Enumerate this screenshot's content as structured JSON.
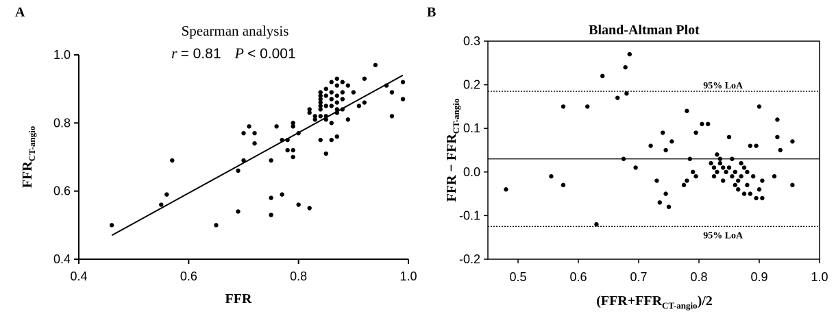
{
  "chart_data": [
    {
      "panel": "A",
      "type": "scatter",
      "title": "Spearman analysis",
      "stats": {
        "r_symbol": "r",
        "r_text": "= 0.81",
        "p_symbol": "P",
        "p_text": "< 0.001"
      },
      "xlabel": "FFR",
      "ylabel_main": "FFR",
      "ylabel_sub": "CT-angio",
      "xlim": [
        0.4,
        1.0
      ],
      "ylim": [
        0.4,
        1.0
      ],
      "xticks": [
        "0.4",
        "0.6",
        "0.8",
        "1.0"
      ],
      "yticks": [
        "0.4",
        "0.6",
        "0.8",
        "1.0"
      ],
      "regression": {
        "x": [
          0.46,
          0.99
        ],
        "y": [
          0.47,
          0.94
        ]
      },
      "points": [
        [
          0.46,
          0.5
        ],
        [
          0.55,
          0.56
        ],
        [
          0.56,
          0.59
        ],
        [
          0.57,
          0.69
        ],
        [
          0.65,
          0.5
        ],
        [
          0.69,
          0.54
        ],
        [
          0.69,
          0.66
        ],
        [
          0.7,
          0.69
        ],
        [
          0.7,
          0.77
        ],
        [
          0.71,
          0.79
        ],
        [
          0.72,
          0.77
        ],
        [
          0.72,
          0.74
        ],
        [
          0.75,
          0.69
        ],
        [
          0.75,
          0.58
        ],
        [
          0.75,
          0.53
        ],
        [
          0.76,
          0.79
        ],
        [
          0.77,
          0.59
        ],
        [
          0.77,
          0.75
        ],
        [
          0.78,
          0.72
        ],
        [
          0.78,
          0.75
        ],
        [
          0.79,
          0.8
        ],
        [
          0.79,
          0.79
        ],
        [
          0.79,
          0.72
        ],
        [
          0.79,
          0.7
        ],
        [
          0.8,
          0.56
        ],
        [
          0.8,
          0.77
        ],
        [
          0.82,
          0.55
        ],
        [
          0.82,
          0.84
        ],
        [
          0.82,
          0.83
        ],
        [
          0.83,
          0.82
        ],
        [
          0.83,
          0.81
        ],
        [
          0.84,
          0.89
        ],
        [
          0.84,
          0.88
        ],
        [
          0.84,
          0.87
        ],
        [
          0.84,
          0.86
        ],
        [
          0.84,
          0.85
        ],
        [
          0.84,
          0.84
        ],
        [
          0.84,
          0.82
        ],
        [
          0.84,
          0.75
        ],
        [
          0.85,
          0.9
        ],
        [
          0.85,
          0.88
        ],
        [
          0.85,
          0.85
        ],
        [
          0.85,
          0.82
        ],
        [
          0.85,
          0.81
        ],
        [
          0.85,
          0.71
        ],
        [
          0.86,
          0.92
        ],
        [
          0.86,
          0.89
        ],
        [
          0.86,
          0.87
        ],
        [
          0.86,
          0.85
        ],
        [
          0.86,
          0.8
        ],
        [
          0.86,
          0.75
        ],
        [
          0.87,
          0.93
        ],
        [
          0.87,
          0.91
        ],
        [
          0.87,
          0.88
        ],
        [
          0.87,
          0.86
        ],
        [
          0.87,
          0.84
        ],
        [
          0.87,
          0.83
        ],
        [
          0.87,
          0.76
        ],
        [
          0.88,
          0.92
        ],
        [
          0.88,
          0.89
        ],
        [
          0.88,
          0.87
        ],
        [
          0.88,
          0.84
        ],
        [
          0.89,
          0.91
        ],
        [
          0.89,
          0.81
        ],
        [
          0.9,
          0.89
        ],
        [
          0.91,
          0.85
        ],
        [
          0.92,
          0.86
        ],
        [
          0.92,
          0.93
        ],
        [
          0.94,
          0.97
        ],
        [
          0.96,
          0.91
        ],
        [
          0.97,
          0.89
        ],
        [
          0.97,
          0.82
        ],
        [
          0.99,
          0.92
        ],
        [
          0.99,
          0.87
        ]
      ]
    },
    {
      "panel": "B",
      "type": "scatter",
      "title": "Bland-Altman Plot",
      "xlabel_pre": "(FFR+FFR",
      "xlabel_sub": "CT-angio",
      "xlabel_post": ")/2",
      "ylabel_pre": "FFR − FFR",
      "ylabel_sub": "CT-angio",
      "xlim": [
        0.45,
        1.0
      ],
      "ylim": [
        -0.2,
        0.3
      ],
      "xticks": [
        "0.5",
        "0.6",
        "0.7",
        "0.8",
        "0.9",
        "1.0"
      ],
      "yticks": [
        "-0.2",
        "-0.1",
        "0.0",
        "0.1",
        "0.2",
        "0.3"
      ],
      "mean_line": 0.03,
      "loa_upper": 0.185,
      "loa_lower": -0.125,
      "loa_upper_label": "95% LoA",
      "loa_lower_label": "95% LoA",
      "points": [
        [
          0.48,
          -0.04
        ],
        [
          0.555,
          -0.01
        ],
        [
          0.575,
          -0.03
        ],
        [
          0.575,
          0.15
        ],
        [
          0.615,
          0.15
        ],
        [
          0.63,
          -0.12
        ],
        [
          0.64,
          0.22
        ],
        [
          0.665,
          0.17
        ],
        [
          0.675,
          0.03
        ],
        [
          0.678,
          0.24
        ],
        [
          0.68,
          0.18
        ],
        [
          0.685,
          0.27
        ],
        [
          0.695,
          0.01
        ],
        [
          0.72,
          0.06
        ],
        [
          0.73,
          -0.02
        ],
        [
          0.735,
          -0.07
        ],
        [
          0.74,
          0.09
        ],
        [
          0.745,
          -0.05
        ],
        [
          0.745,
          0.05
        ],
        [
          0.75,
          -0.08
        ],
        [
          0.755,
          0.07
        ],
        [
          0.775,
          -0.03
        ],
        [
          0.78,
          0.14
        ],
        [
          0.78,
          -0.02
        ],
        [
          0.785,
          0.03
        ],
        [
          0.79,
          0.0
        ],
        [
          0.795,
          -0.01
        ],
        [
          0.795,
          0.09
        ],
        [
          0.805,
          0.11
        ],
        [
          0.815,
          0.11
        ],
        [
          0.82,
          0.02
        ],
        [
          0.825,
          0.01
        ],
        [
          0.825,
          -0.01
        ],
        [
          0.83,
          0.04
        ],
        [
          0.83,
          0.0
        ],
        [
          0.835,
          0.03
        ],
        [
          0.835,
          0.02
        ],
        [
          0.84,
          0.01
        ],
        [
          0.84,
          -0.02
        ],
        [
          0.845,
          0.0
        ],
        [
          0.85,
          0.08
        ],
        [
          0.85,
          0.01
        ],
        [
          0.855,
          0.03
        ],
        [
          0.855,
          -0.01
        ],
        [
          0.86,
          0.0
        ],
        [
          0.86,
          -0.03
        ],
        [
          0.865,
          -0.02
        ],
        [
          0.865,
          -0.04
        ],
        [
          0.87,
          0.02
        ],
        [
          0.87,
          -0.01
        ],
        [
          0.875,
          -0.05
        ],
        [
          0.875,
          0.01
        ],
        [
          0.88,
          0.0
        ],
        [
          0.88,
          -0.03
        ],
        [
          0.885,
          -0.05
        ],
        [
          0.885,
          0.06
        ],
        [
          0.89,
          -0.01
        ],
        [
          0.895,
          -0.06
        ],
        [
          0.895,
          0.06
        ],
        [
          0.9,
          0.15
        ],
        [
          0.9,
          -0.04
        ],
        [
          0.905,
          -0.06
        ],
        [
          0.905,
          -0.02
        ],
        [
          0.925,
          -0.01
        ],
        [
          0.93,
          0.12
        ],
        [
          0.93,
          0.08
        ],
        [
          0.935,
          0.05
        ],
        [
          0.955,
          0.07
        ],
        [
          0.955,
          -0.03
        ]
      ]
    }
  ]
}
